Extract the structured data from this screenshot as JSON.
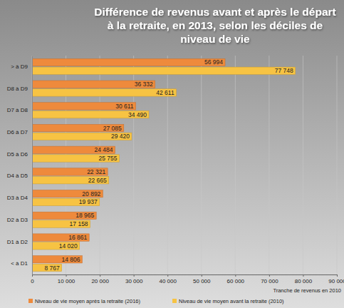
{
  "chart_data": {
    "type": "bar",
    "orientation": "horizontal",
    "title": "Différence de revenus avant et après le départ à la retraite, en 2013, selon les déciles de niveau de vie",
    "x_label": "Tranche de revenus en 2010",
    "categories": [
      "> à D9",
      "D8 à D9",
      "D7 à D8",
      "D6 à D7",
      "D5 à D6",
      "D4 à D5",
      "D3 à D4",
      "D2 à D3",
      "D1 à D2",
      "< à D1"
    ],
    "series": [
      {
        "name": "Niveau de vie moyen après la retraite (2016)",
        "color": "#ee8a3c",
        "values": [
          56994,
          36332,
          30611,
          27085,
          24484,
          22321,
          20892,
          18965,
          16861,
          14806
        ],
        "value_labels": [
          "56 994",
          "36 332",
          "30 611",
          "27 085",
          "24 484",
          "22 321",
          "20 892",
          "18 965",
          "16 861",
          "14 806"
        ]
      },
      {
        "name": "Niveau de vie moyen avant la retraite (2010)",
        "color": "#f7c343",
        "values": [
          77748,
          42611,
          34490,
          29420,
          25755,
          22665,
          19937,
          17158,
          14020,
          8767
        ],
        "value_labels": [
          "77 748",
          "42 611",
          "34 490",
          "29 420",
          "25 755",
          "22 665",
          "19 937",
          "17 158",
          "14 020",
          "8 767"
        ]
      }
    ],
    "xlim": [
      0,
      90000
    ],
    "xticks": [
      0,
      {
        "value": 10000,
        "label": "10 000"
      },
      {
        "value": 20000,
        "label": "20 000"
      },
      {
        "value": 30000,
        "label": "30 000"
      },
      {
        "value": 40000,
        "label": "40 000"
      },
      {
        "value": 50000,
        "label": "50 000"
      },
      {
        "value": 60000,
        "label": "60 000"
      },
      {
        "value": 70000,
        "label": "70 000"
      },
      {
        "value": 80000,
        "label": "80 000"
      },
      {
        "value": 90000,
        "label": "90 000"
      }
    ],
    "grid": true,
    "legend": "bottom",
    "data_labels": true
  }
}
